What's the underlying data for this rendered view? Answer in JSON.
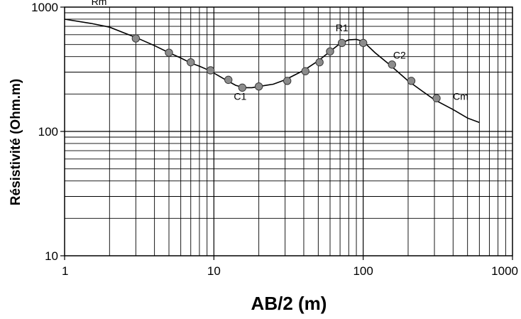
{
  "chart_data": {
    "type": "scatter",
    "title": "",
    "xlabel": "AB/2 (m)",
    "ylabel": "Résistivité (Ohm.m)",
    "x_scale": "log",
    "y_scale": "log",
    "xlim": [
      1,
      1000
    ],
    "ylim": [
      10,
      1000
    ],
    "grid": true,
    "x_ticks": [
      {
        "value": 1,
        "label": "1"
      },
      {
        "value": 10,
        "label": "10"
      },
      {
        "value": 100,
        "label": "100"
      },
      {
        "value": 1000,
        "label": "1000"
      }
    ],
    "y_ticks": [
      {
        "value": 10,
        "label": "10"
      },
      {
        "value": 100,
        "label": "100"
      },
      {
        "value": 1000,
        "label": "1000"
      }
    ],
    "series": [
      {
        "type": "line",
        "x": [
          1,
          1.5,
          2,
          2.5,
          3,
          4,
          5,
          6,
          7,
          8,
          9,
          10,
          12,
          14,
          16,
          18,
          20,
          25,
          30,
          40,
          50,
          60,
          70,
          80,
          90,
          100,
          120,
          150,
          200,
          250,
          300,
          400,
          500,
          600
        ],
        "y": [
          800,
          740,
          690,
          620,
          570,
          490,
          430,
          390,
          355,
          335,
          315,
          295,
          260,
          235,
          225,
          225,
          230,
          240,
          260,
          310,
          370,
          440,
          510,
          545,
          550,
          530,
          430,
          345,
          255,
          210,
          180,
          150,
          128,
          118
        ]
      },
      {
        "type": "scatter",
        "x": [
          3,
          5,
          7,
          9.5,
          12.5,
          15.5,
          20,
          31,
          41,
          51,
          60,
          72,
          100,
          156,
          210,
          310
        ],
        "y": [
          560,
          430,
          360,
          310,
          260,
          225,
          230,
          255,
          305,
          360,
          440,
          515,
          515,
          345,
          255,
          185
        ]
      }
    ],
    "annotations": [
      {
        "text": "Rm",
        "x": 1.7,
        "y": 1040
      },
      {
        "text": "R1",
        "x": 72,
        "y": 640
      },
      {
        "text": "C1",
        "x": 15,
        "y": 180
      },
      {
        "text": "C2",
        "x": 175,
        "y": 385
      },
      {
        "text": "Cm",
        "x": 450,
        "y": 180
      }
    ],
    "colors": {
      "line": "#000000",
      "marker": "#8c8c8c",
      "grid": "#000000"
    }
  }
}
